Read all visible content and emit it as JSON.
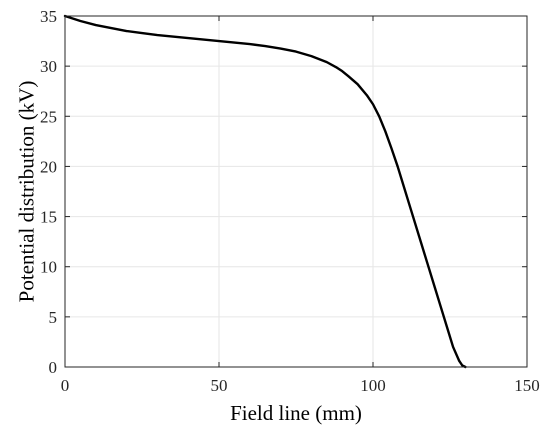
{
  "chart_data": {
    "type": "line",
    "title": "",
    "xlabel": "Field line (mm)",
    "ylabel": "Potential distribution (kV)",
    "xlim": [
      0,
      150
    ],
    "ylim": [
      0,
      35
    ],
    "xticks": [
      0,
      50,
      100,
      150
    ],
    "yticks": [
      0,
      5,
      10,
      15,
      20,
      25,
      30,
      35
    ],
    "xtick_labels": [
      "0",
      "50",
      "100",
      "150"
    ],
    "ytick_labels": [
      "0",
      "5",
      "10",
      "15",
      "20",
      "25",
      "30",
      "35"
    ],
    "grid": true,
    "line_color": "#000000",
    "series": [
      {
        "x": [
          0,
          5,
          10,
          15,
          20,
          25,
          30,
          35,
          40,
          45,
          50,
          55,
          60,
          65,
          70,
          75,
          80,
          85,
          88,
          90,
          92,
          95,
          98,
          100,
          102,
          104,
          106,
          108,
          110,
          112,
          115,
          118,
          120,
          122,
          124,
          126,
          128,
          129,
          130
        ],
        "y": [
          35.0,
          34.5,
          34.1,
          33.8,
          33.5,
          33.3,
          33.1,
          32.95,
          32.8,
          32.65,
          32.5,
          32.35,
          32.2,
          32.0,
          31.75,
          31.45,
          31.0,
          30.4,
          29.9,
          29.5,
          29.0,
          28.2,
          27.1,
          26.2,
          25.0,
          23.5,
          21.8,
          20.0,
          18.0,
          16.0,
          13.0,
          10.0,
          8.0,
          6.0,
          4.0,
          2.0,
          0.6,
          0.15,
          0
        ]
      }
    ]
  }
}
